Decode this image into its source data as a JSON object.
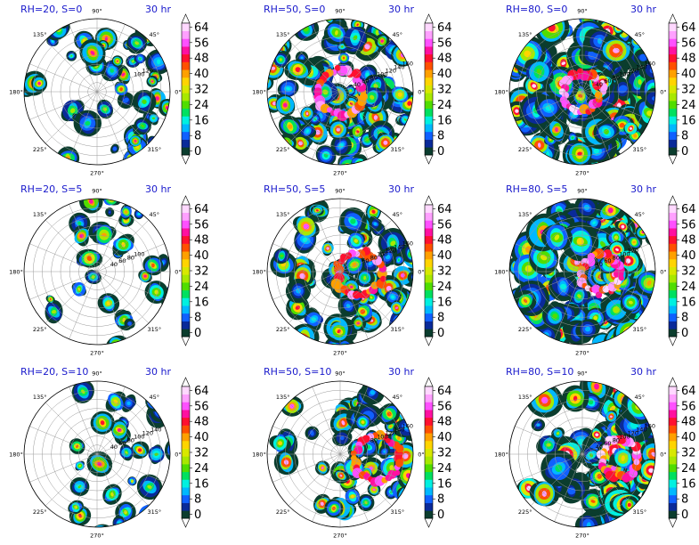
{
  "figure": {
    "colorbar": {
      "ticks": [
        "0",
        "8",
        "16",
        "24",
        "32",
        "40",
        "48",
        "56",
        "64"
      ],
      "levels": [
        0,
        4,
        8,
        12,
        16,
        20,
        24,
        28,
        32,
        36,
        40,
        44,
        48,
        52,
        56,
        60,
        64,
        68
      ],
      "colors": [
        "#0b3d2e",
        "#0a2a99",
        "#1060ff",
        "#00b8ff",
        "#00f0e0",
        "#00e060",
        "#50dd00",
        "#a8e800",
        "#d8e800",
        "#ffd400",
        "#ffa000",
        "#ff5000",
        "#ff1030",
        "#ff10a0",
        "#ff50ff",
        "#ffa0ff",
        "#ffd8ff"
      ],
      "extend": "both"
    },
    "polar": {
      "angle_labels": [
        "0°",
        "45°",
        "90°",
        "135°",
        "180°",
        "225°",
        "270°",
        "315°"
      ],
      "radial_rings": 8,
      "radius_labels": [
        "40",
        "60",
        "80",
        "100",
        "120",
        "140",
        "160"
      ]
    }
  },
  "chart_data": [
    {
      "type": "heatmap",
      "title_left": "RH=20, S=0",
      "title_right": "30 hr",
      "rh": 20,
      "s": 0,
      "radius_labels_shown": [
        "100",
        "120"
      ]
    },
    {
      "type": "heatmap",
      "title_left": "RH=50, S=0",
      "title_right": "30 hr",
      "rh": 50,
      "s": 0,
      "radius_labels_shown": [
        "40",
        "60",
        "80",
        "100",
        "120",
        "140",
        "160"
      ]
    },
    {
      "type": "heatmap",
      "title_left": "RH=80, S=0",
      "title_right": "30 hr",
      "rh": 80,
      "s": 0,
      "radius_labels_shown": [
        "40",
        "60",
        "80",
        "100",
        "120",
        "140",
        "160"
      ]
    },
    {
      "type": "heatmap",
      "title_left": "RH=20, S=5",
      "title_right": "30 hr",
      "rh": 20,
      "s": 5,
      "radius_labels_shown": [
        "40",
        "60",
        "80",
        "100"
      ]
    },
    {
      "type": "heatmap",
      "title_left": "RH=50, S=5",
      "title_right": "30 hr",
      "rh": 50,
      "s": 5,
      "radius_labels_shown": [
        "60",
        "80",
        "100",
        "120",
        "140",
        "160"
      ]
    },
    {
      "type": "heatmap",
      "title_left": "RH=80, S=5",
      "title_right": "30 hr",
      "rh": 80,
      "s": 5,
      "radius_labels_shown": [
        "40",
        "60",
        "80",
        "100",
        "120"
      ]
    },
    {
      "type": "heatmap",
      "title_left": "RH=20, S=10",
      "title_right": "30 hr",
      "rh": 20,
      "s": 10,
      "radius_labels_shown": [
        "40",
        "60",
        "80",
        "100",
        "120",
        "140"
      ]
    },
    {
      "type": "heatmap",
      "title_left": "RH=50, S=10",
      "title_right": "30 hr",
      "rh": 50,
      "s": 10,
      "radius_labels_shown": [
        "80",
        "100",
        "120",
        "140",
        "160"
      ]
    },
    {
      "type": "heatmap",
      "title_left": "RH=80, S=10",
      "title_right": "30 hr",
      "rh": 80,
      "s": 10,
      "radius_labels_shown": [
        "40",
        "60",
        "80",
        "100",
        "120",
        "140",
        "160"
      ]
    }
  ]
}
